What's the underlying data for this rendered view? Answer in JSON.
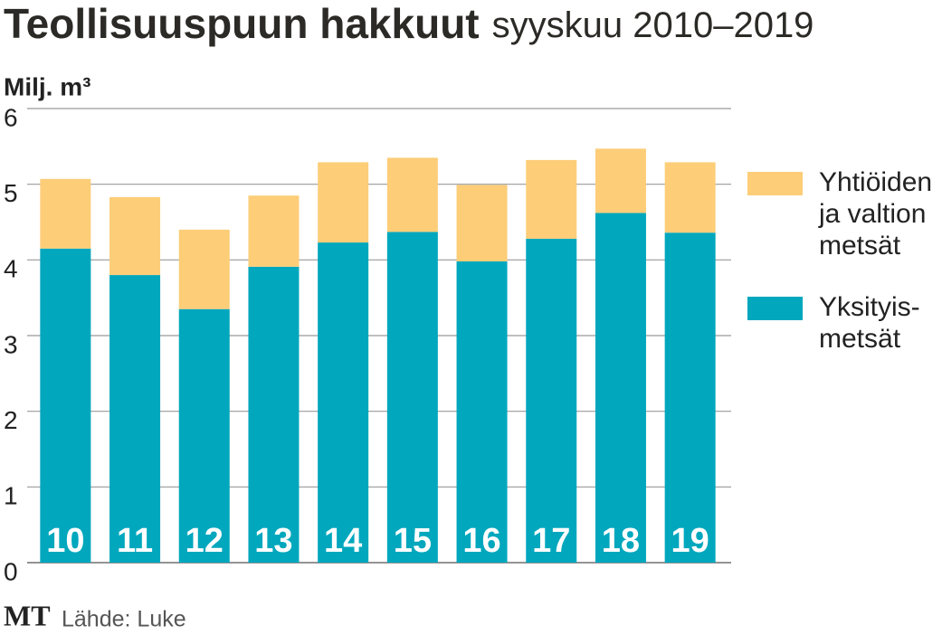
{
  "chart_data": {
    "type": "stacked_bar",
    "title": "Teollisuuspuun hakkuut",
    "subtitle": "syyskuu 2010–2019",
    "y_label": "Milj. m³",
    "source": "Lähde: Luke",
    "logo": "MT",
    "categories": [
      "10",
      "11",
      "12",
      "13",
      "14",
      "15",
      "16",
      "17",
      "18",
      "19"
    ],
    "series": [
      {
        "name": "Yksityis-metsät",
        "color": "#00a7bd",
        "values": [
          4.15,
          3.8,
          3.35,
          3.91,
          4.23,
          4.37,
          3.98,
          4.28,
          4.62,
          4.36
        ]
      },
      {
        "name": "Yhtiöiden ja valtion metsät",
        "color": "#fdcd78",
        "values": [
          0.92,
          1.03,
          1.05,
          0.94,
          1.06,
          0.98,
          1.01,
          1.04,
          0.85,
          0.93
        ]
      }
    ],
    "ylim": [
      0,
      6
    ],
    "yticks": [
      0,
      1,
      2,
      3,
      4,
      5,
      6
    ],
    "grid": true,
    "legend": "right"
  }
}
